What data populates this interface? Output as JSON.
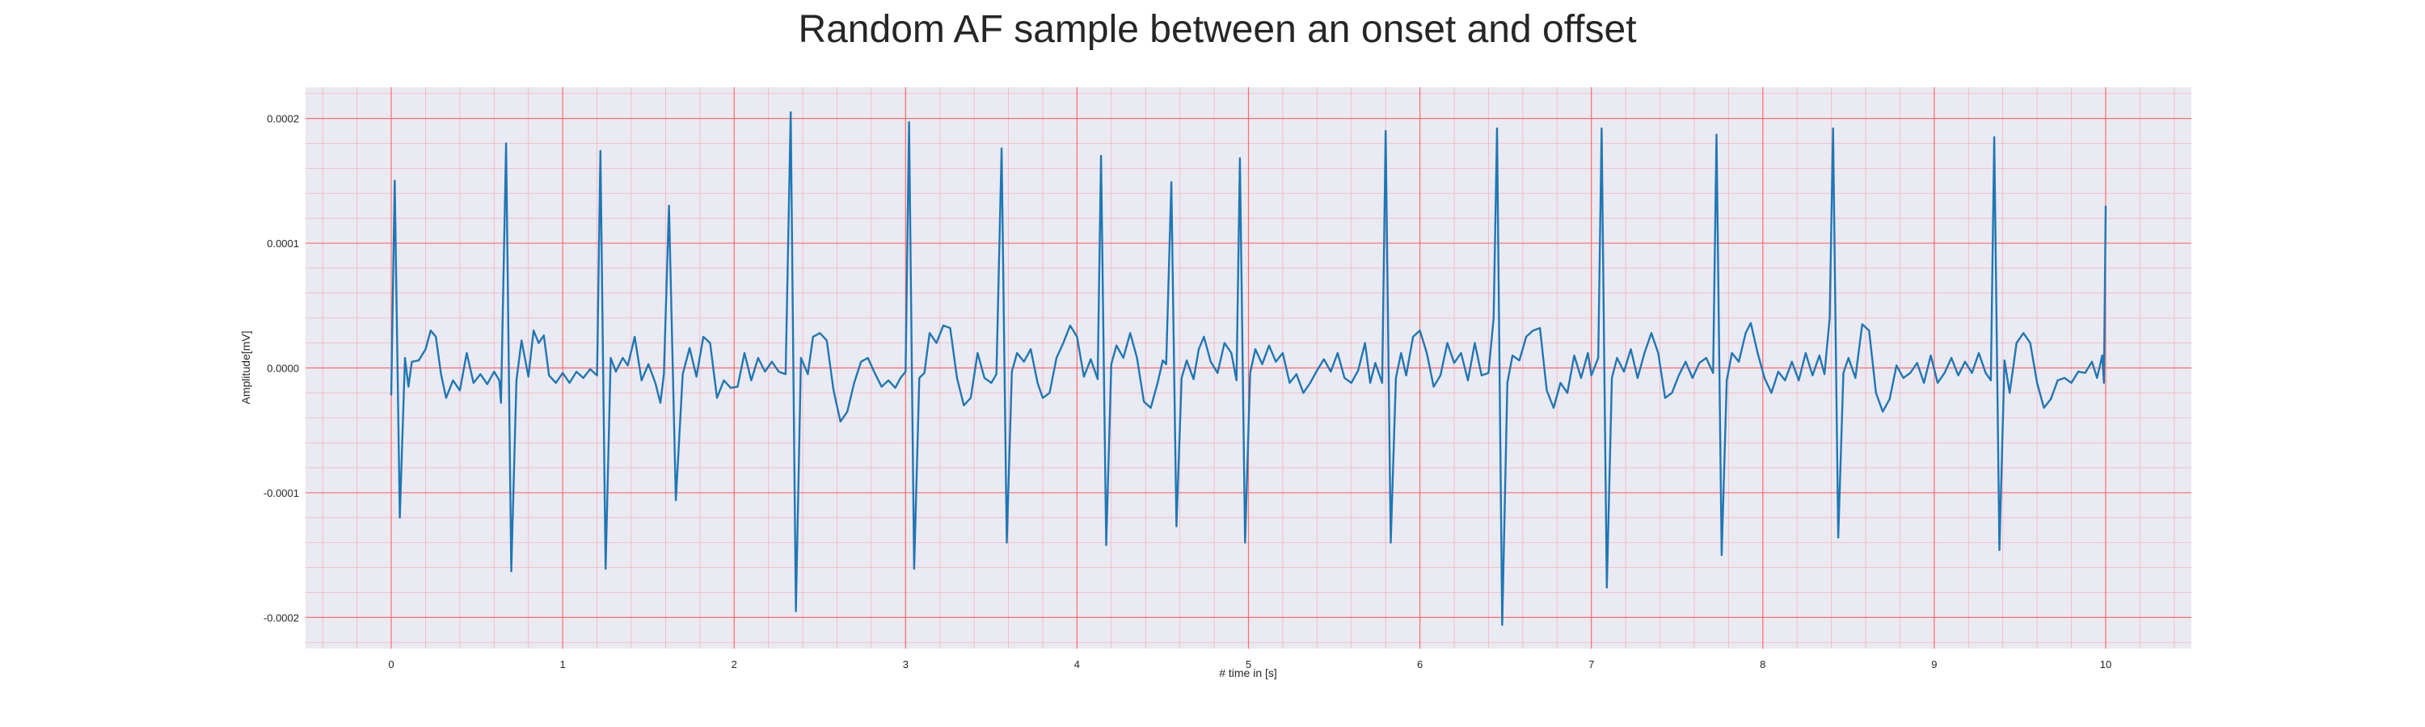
{
  "chart_data": {
    "type": "line",
    "title": "Random AF sample between an onset and offset",
    "xlabel": "# time in [s]",
    "ylabel": "Amplitude[mV]",
    "xlim": [
      -0.5,
      10.5
    ],
    "ylim": [
      -0.000225,
      0.000225
    ],
    "x_ticks": [
      0,
      1,
      2,
      3,
      4,
      5,
      6,
      7,
      8,
      9,
      10
    ],
    "x_tick_labels": [
      "0",
      "1",
      "2",
      "3",
      "4",
      "5",
      "6",
      "7",
      "8",
      "9",
      "10"
    ],
    "y_ticks": [
      -0.0002,
      -0.0001,
      0.0,
      0.0001,
      0.0002
    ],
    "y_tick_labels": [
      "-0.0002",
      "-0.0001",
      "0.0000",
      "0.0001",
      "0.0002"
    ],
    "grid": true,
    "minor_grid": true,
    "colors": {
      "line": "#1f77b4",
      "plot_background": "#eaeaf2",
      "major_grid": "#ff6b6b",
      "minor_grid": "#f5b3c0"
    },
    "series": [
      {
        "points": [
          [
            0.0,
            -2.2e-05
          ],
          [
            0.02,
            0.00015
          ],
          [
            0.05,
            -0.00012
          ],
          [
            0.08,
            8e-06
          ],
          [
            0.1,
            -1.5e-05
          ],
          [
            0.12,
            5e-06
          ],
          [
            0.16,
            6e-06
          ],
          [
            0.2,
            1.5e-05
          ],
          [
            0.23,
            3e-05
          ],
          [
            0.26,
            2.5e-05
          ],
          [
            0.29,
            -5e-06
          ],
          [
            0.32,
            -2.4e-05
          ],
          [
            0.36,
            -1e-05
          ],
          [
            0.4,
            -1.8e-05
          ],
          [
            0.44,
            1.2e-05
          ],
          [
            0.48,
            -1.2e-05
          ],
          [
            0.52,
            -5e-06
          ],
          [
            0.56,
            -1.3e-05
          ],
          [
            0.6,
            -3e-06
          ],
          [
            0.63,
            -1e-05
          ],
          [
            0.64,
            -2.8e-05
          ],
          [
            0.67,
            0.00018
          ],
          [
            0.7,
            -0.000163
          ],
          [
            0.73,
            -1e-05
          ],
          [
            0.76,
            2.2e-05
          ],
          [
            0.8,
            -7e-06
          ],
          [
            0.83,
            3e-05
          ],
          [
            0.86,
            2e-05
          ],
          [
            0.89,
            2.6e-05
          ],
          [
            0.92,
            -6e-06
          ],
          [
            0.96,
            -1.2e-05
          ],
          [
            1.0,
            -4e-06
          ],
          [
            1.04,
            -1.2e-05
          ],
          [
            1.08,
            -3e-06
          ],
          [
            1.12,
            -8e-06
          ],
          [
            1.16,
            -1e-06
          ],
          [
            1.2,
            -6e-06
          ],
          [
            1.22,
            0.000174
          ],
          [
            1.25,
            -0.000161
          ],
          [
            1.28,
            8e-06
          ],
          [
            1.31,
            -3e-06
          ],
          [
            1.35,
            8e-06
          ],
          [
            1.38,
            2e-06
          ],
          [
            1.42,
            2.5e-05
          ],
          [
            1.46,
            -1e-05
          ],
          [
            1.5,
            3e-06
          ],
          [
            1.54,
            -1.2e-05
          ],
          [
            1.57,
            -2.8e-05
          ],
          [
            1.59,
            -5e-06
          ],
          [
            1.62,
            0.00013
          ],
          [
            1.66,
            -0.000106
          ],
          [
            1.7,
            -5e-06
          ],
          [
            1.74,
            1.6e-05
          ],
          [
            1.78,
            -7e-06
          ],
          [
            1.82,
            2.5e-05
          ],
          [
            1.86,
            2e-05
          ],
          [
            1.9,
            -2.4e-05
          ],
          [
            1.94,
            -1e-05
          ],
          [
            1.98,
            -1.6e-05
          ],
          [
            2.02,
            -1.5e-05
          ],
          [
            2.06,
            1.2e-05
          ],
          [
            2.1,
            -1e-05
          ],
          [
            2.14,
            8e-06
          ],
          [
            2.18,
            -3e-06
          ],
          [
            2.22,
            5e-06
          ],
          [
            2.26,
            -3e-06
          ],
          [
            2.3,
            -5e-06
          ],
          [
            2.33,
            0.000205
          ],
          [
            2.36,
            -0.000195
          ],
          [
            2.39,
            8e-06
          ],
          [
            2.43,
            -5e-06
          ],
          [
            2.46,
            2.5e-05
          ],
          [
            2.5,
            2.8e-05
          ],
          [
            2.54,
            2.2e-05
          ],
          [
            2.58,
            -1.8e-05
          ],
          [
            2.62,
            -4.3e-05
          ],
          [
            2.66,
            -3.5e-05
          ],
          [
            2.7,
            -1.2e-05
          ],
          [
            2.74,
            5e-06
          ],
          [
            2.78,
            8e-06
          ],
          [
            2.82,
            -4e-06
          ],
          [
            2.86,
            -1.5e-05
          ],
          [
            2.9,
            -1e-05
          ],
          [
            2.94,
            -1.6e-05
          ],
          [
            2.97,
            -8e-06
          ],
          [
            3.0,
            -3e-06
          ],
          [
            3.02,
            0.000197
          ],
          [
            3.05,
            -0.000161
          ],
          [
            3.08,
            -8e-06
          ],
          [
            3.11,
            -4e-06
          ],
          [
            3.14,
            2.8e-05
          ],
          [
            3.18,
            2e-05
          ],
          [
            3.22,
            3.4e-05
          ],
          [
            3.26,
            3.2e-05
          ],
          [
            3.3,
            -8e-06
          ],
          [
            3.34,
            -3e-05
          ],
          [
            3.38,
            -2.4e-05
          ],
          [
            3.42,
            1.2e-05
          ],
          [
            3.46,
            -8e-06
          ],
          [
            3.5,
            -1.2e-05
          ],
          [
            3.53,
            -5e-06
          ],
          [
            3.56,
            0.000176
          ],
          [
            3.59,
            -0.00014
          ],
          [
            3.62,
            -3e-06
          ],
          [
            3.65,
            1.2e-05
          ],
          [
            3.69,
            5e-06
          ],
          [
            3.73,
            1.5e-05
          ],
          [
            3.77,
            -1.2e-05
          ],
          [
            3.8,
            -2.4e-05
          ],
          [
            3.84,
            -2e-05
          ],
          [
            3.88,
            8e-06
          ],
          [
            3.92,
            2e-05
          ],
          [
            3.96,
            3.4e-05
          ],
          [
            4.0,
            2.5e-05
          ],
          [
            4.04,
            -7e-06
          ],
          [
            4.08,
            7e-06
          ],
          [
            4.12,
            -9e-06
          ],
          [
            4.14,
            0.00017
          ],
          [
            4.17,
            -0.000142
          ],
          [
            4.2,
            3e-06
          ],
          [
            4.23,
            1.8e-05
          ],
          [
            4.27,
            8e-06
          ],
          [
            4.31,
            2.8e-05
          ],
          [
            4.35,
            8e-06
          ],
          [
            4.39,
            -2.7e-05
          ],
          [
            4.43,
            -3.2e-05
          ],
          [
            4.47,
            -1.2e-05
          ],
          [
            4.5,
            6e-06
          ],
          [
            4.52,
            3e-06
          ],
          [
            4.55,
            0.000149
          ],
          [
            4.58,
            -0.000127
          ],
          [
            4.61,
            -8e-06
          ],
          [
            4.64,
            6e-06
          ],
          [
            4.68,
            -9e-06
          ],
          [
            4.71,
            1.5e-05
          ],
          [
            4.74,
            2.5e-05
          ],
          [
            4.78,
            5e-06
          ],
          [
            4.82,
            -4e-06
          ],
          [
            4.86,
            2e-05
          ],
          [
            4.9,
            1.2e-05
          ],
          [
            4.93,
            -1e-05
          ],
          [
            4.95,
            0.000168
          ],
          [
            4.98,
            -0.00014
          ],
          [
            5.01,
            -4e-06
          ],
          [
            5.04,
            1.5e-05
          ],
          [
            5.08,
            3e-06
          ],
          [
            5.12,
            1.8e-05
          ],
          [
            5.16,
            5e-06
          ],
          [
            5.2,
            1.2e-05
          ],
          [
            5.24,
            -1.2e-05
          ],
          [
            5.28,
            -5e-06
          ],
          [
            5.32,
            -2e-05
          ],
          [
            5.36,
            -1.2e-05
          ],
          [
            5.4,
            -2e-06
          ],
          [
            5.44,
            7e-06
          ],
          [
            5.48,
            -3e-06
          ],
          [
            5.52,
            1.2e-05
          ],
          [
            5.56,
            -8e-06
          ],
          [
            5.6,
            -1.2e-05
          ],
          [
            5.64,
            -2e-06
          ],
          [
            5.68,
            2e-05
          ],
          [
            5.71,
            -1.2e-05
          ],
          [
            5.74,
            4e-06
          ],
          [
            5.78,
            -1.2e-05
          ],
          [
            5.8,
            0.00019
          ],
          [
            5.83,
            -0.00014
          ],
          [
            5.86,
            -8e-06
          ],
          [
            5.89,
            1.2e-05
          ],
          [
            5.92,
            -6e-06
          ],
          [
            5.96,
            2.5e-05
          ],
          [
            6.0,
            3e-05
          ],
          [
            6.04,
            1.2e-05
          ],
          [
            6.08,
            -1.5e-05
          ],
          [
            6.12,
            -6e-06
          ],
          [
            6.16,
            2e-05
          ],
          [
            6.2,
            4e-06
          ],
          [
            6.24,
            1.2e-05
          ],
          [
            6.28,
            -1e-05
          ],
          [
            6.32,
            2e-05
          ],
          [
            6.36,
            -6e-06
          ],
          [
            6.4,
            -4e-06
          ],
          [
            6.43,
            4e-05
          ],
          [
            6.45,
            0.000192
          ],
          [
            6.48,
            -0.000206
          ],
          [
            6.51,
            -1.2e-05
          ],
          [
            6.54,
            1e-05
          ],
          [
            6.58,
            6e-06
          ],
          [
            6.62,
            2.5e-05
          ],
          [
            6.66,
            3e-05
          ],
          [
            6.7,
            3.2e-05
          ],
          [
            6.74,
            -1.8e-05
          ],
          [
            6.78,
            -3.2e-05
          ],
          [
            6.82,
            -1.2e-05
          ],
          [
            6.86,
            -2e-05
          ],
          [
            6.9,
            1e-05
          ],
          [
            6.94,
            -8e-06
          ],
          [
            6.98,
            1.2e-05
          ],
          [
            7.0,
            -6e-06
          ],
          [
            7.04,
            8e-06
          ],
          [
            7.06,
            0.000192
          ],
          [
            7.09,
            -0.000176
          ],
          [
            7.12,
            -8e-06
          ],
          [
            7.15,
            8e-06
          ],
          [
            7.19,
            -3e-06
          ],
          [
            7.23,
            1.5e-05
          ],
          [
            7.27,
            -8e-06
          ],
          [
            7.31,
            1.2e-05
          ],
          [
            7.35,
            2.8e-05
          ],
          [
            7.39,
            1.2e-05
          ],
          [
            7.43,
            -2.4e-05
          ],
          [
            7.47,
            -2e-05
          ],
          [
            7.51,
            -6e-06
          ],
          [
            7.55,
            5e-06
          ],
          [
            7.59,
            -8e-06
          ],
          [
            7.63,
            4e-06
          ],
          [
            7.67,
            8e-06
          ],
          [
            7.71,
            -4e-06
          ],
          [
            7.73,
            0.000187
          ],
          [
            7.76,
            -0.00015
          ],
          [
            7.79,
            -1e-05
          ],
          [
            7.82,
            1.2e-05
          ],
          [
            7.86,
            5e-06
          ],
          [
            7.9,
            2.8e-05
          ],
          [
            7.93,
            3.6e-05
          ],
          [
            7.97,
            1.2e-05
          ],
          [
            8.01,
            -8e-06
          ],
          [
            8.05,
            -2e-05
          ],
          [
            8.09,
            -3e-06
          ],
          [
            8.13,
            -1e-05
          ],
          [
            8.17,
            5e-06
          ],
          [
            8.21,
            -1e-05
          ],
          [
            8.25,
            1.2e-05
          ],
          [
            8.29,
            -6e-06
          ],
          [
            8.33,
            1e-05
          ],
          [
            8.36,
            -5e-06
          ],
          [
            8.39,
            4e-05
          ],
          [
            8.41,
            0.000192
          ],
          [
            8.44,
            -0.000136
          ],
          [
            8.47,
            -4e-06
          ],
          [
            8.5,
            8e-06
          ],
          [
            8.54,
            -8e-06
          ],
          [
            8.58,
            3.5e-05
          ],
          [
            8.62,
            3e-05
          ],
          [
            8.66,
            -2e-05
          ],
          [
            8.7,
            -3.5e-05
          ],
          [
            8.74,
            -2.5e-05
          ],
          [
            8.78,
            2e-06
          ],
          [
            8.82,
            -8e-06
          ],
          [
            8.86,
            -4e-06
          ],
          [
            8.9,
            4e-06
          ],
          [
            8.94,
            -1.2e-05
          ],
          [
            8.98,
            1e-05
          ],
          [
            9.02,
            -1.2e-05
          ],
          [
            9.06,
            -4e-06
          ],
          [
            9.1,
            8e-06
          ],
          [
            9.14,
            -6e-06
          ],
          [
            9.18,
            5e-06
          ],
          [
            9.22,
            -4e-06
          ],
          [
            9.26,
            1.2e-05
          ],
          [
            9.3,
            -4e-06
          ],
          [
            9.33,
            -1e-05
          ],
          [
            9.35,
            0.000185
          ],
          [
            9.38,
            -0.000146
          ],
          [
            9.41,
            6e-06
          ],
          [
            9.44,
            -2e-05
          ],
          [
            9.48,
            2e-05
          ],
          [
            9.52,
            2.8e-05
          ],
          [
            9.56,
            2e-05
          ],
          [
            9.6,
            -1.2e-05
          ],
          [
            9.64,
            -3.2e-05
          ],
          [
            9.68,
            -2.5e-05
          ],
          [
            9.72,
            -1e-05
          ],
          [
            9.76,
            -8e-06
          ],
          [
            9.8,
            -1.2e-05
          ],
          [
            9.84,
            -3e-06
          ],
          [
            9.88,
            -4e-06
          ],
          [
            9.92,
            5e-06
          ],
          [
            9.95,
            -8e-06
          ],
          [
            9.98,
            1e-05
          ],
          [
            9.99,
            -1.2e-05
          ],
          [
            10.0,
            0.00013
          ]
        ]
      }
    ]
  }
}
